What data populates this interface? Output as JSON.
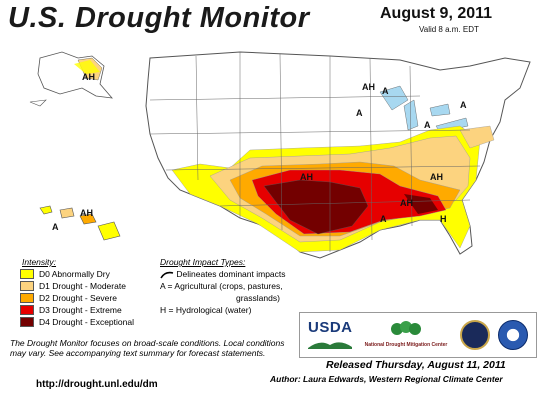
{
  "header": {
    "title": "U.S. Drought Monitor",
    "date": "August 9, 2011",
    "valid": "Valid 8 a.m. EDT"
  },
  "colors": {
    "d0": "#ffff00",
    "d1": "#fcd37f",
    "d2": "#ffaa00",
    "d3": "#e60000",
    "d4": "#730000",
    "water": "#a8d8f0",
    "state_lines": "#555555"
  },
  "intensity": {
    "title": "Intensity:",
    "items": [
      {
        "label": "D0 Abnormally Dry",
        "color": "#ffff00"
      },
      {
        "label": "D1 Drought - Moderate",
        "color": "#fcd37f"
      },
      {
        "label": "D2 Drought - Severe",
        "color": "#ffaa00"
      },
      {
        "label": "D3 Drought - Extreme",
        "color": "#e60000"
      },
      {
        "label": "D4 Drought - Exceptional",
        "color": "#730000"
      }
    ]
  },
  "impact": {
    "title": "Drought Impact Types:",
    "dominant": "Delineates dominant impacts",
    "agri": "A = Agricultural (crops, pastures,",
    "agri2": "grasslands)",
    "hydro": "H = Hydrological (water)"
  },
  "note": "The Drought Monitor focuses on broad-scale conditions. Local conditions may vary. See accompanying text summary for forecast statements.",
  "url": "http://drought.unl.edu/dm",
  "logos": {
    "usda": "USDA",
    "ndmc": "National Drought Mitigation Center"
  },
  "released": "Released Thursday, August 11, 2011",
  "author": "Author: Laura Edwards, Western Regional Climate Center",
  "map_labels": {
    "ah": "AH",
    "a": "A",
    "h": "H"
  }
}
